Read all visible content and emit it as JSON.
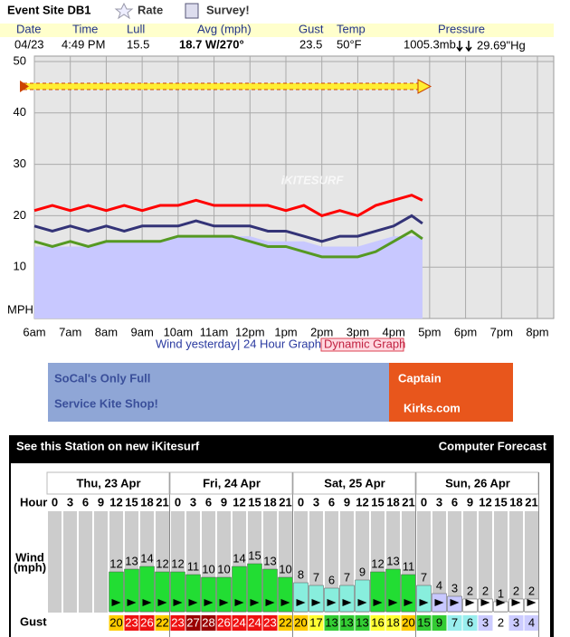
{
  "header": {
    "station": "Event Site DB1",
    "rate": "Rate",
    "survey": "Survey!"
  },
  "current": {
    "columns": [
      "Date",
      "Time",
      "Lull",
      "Avg (mph)",
      "Gust",
      "Temp",
      "Pressure"
    ],
    "date": "04/23",
    "time": "4:49 PM",
    "lull": "15.5",
    "avg": "18.7 W/270°",
    "gust": "23.5",
    "temp": "50°F",
    "pressure_mb": "1005.3mb",
    "pressure_hg": "29.69\"Hg"
  },
  "chart_data": {
    "type": "line",
    "watermark": "iKITESURF",
    "ylabel": "MPH",
    "xlim": [
      6,
      20
    ],
    "xticks": [
      {
        "value": 6,
        "label": "6am"
      },
      {
        "value": 7,
        "label": "7am"
      },
      {
        "value": 8,
        "label": "8am"
      },
      {
        "value": 9,
        "label": "9am"
      },
      {
        "value": 10,
        "label": "10am"
      },
      {
        "value": 11,
        "label": "11am"
      },
      {
        "value": 12,
        "label": "12pm"
      },
      {
        "value": 13,
        "label": "1pm"
      },
      {
        "value": 14,
        "label": "2pm"
      },
      {
        "value": 15,
        "label": "3pm"
      },
      {
        "value": 16,
        "label": "4pm"
      },
      {
        "value": 17,
        "label": "5pm"
      },
      {
        "value": 18,
        "label": "6pm"
      },
      {
        "value": 19,
        "label": "7pm"
      },
      {
        "value": 20,
        "label": "8pm"
      }
    ],
    "ylim": [
      0,
      50
    ],
    "yticks": [
      10,
      20,
      30,
      40,
      50
    ],
    "grid": true,
    "x": [
      6,
      6.5,
      7,
      7.5,
      8,
      8.5,
      9,
      9.5,
      10,
      10.5,
      11,
      11.5,
      12,
      12.5,
      13,
      13.5,
      14,
      14.5,
      15,
      15.5,
      16,
      16.5,
      16.8
    ],
    "series": [
      {
        "name": "Wind yesterday",
        "type": "area",
        "color": "#c8c8ff",
        "values": [
          14,
          14,
          14,
          14,
          15,
          15,
          15,
          15,
          16,
          16,
          16,
          16,
          16,
          15,
          15,
          15,
          14,
          14,
          14,
          15,
          16,
          16,
          16
        ]
      },
      {
        "color": "#ff0000",
        "values": [
          21,
          22,
          21,
          22,
          21,
          22,
          21,
          22,
          22,
          23,
          22,
          22,
          22,
          22,
          21,
          22,
          20,
          21,
          20,
          22,
          23,
          24,
          23
        ]
      },
      {
        "color": "#333377",
        "values": [
          18,
          17,
          18,
          17,
          18,
          17,
          18,
          18,
          18,
          19,
          18,
          18,
          18,
          17,
          17,
          16,
          15,
          16,
          16,
          17,
          18,
          20,
          18.5
        ]
      },
      {
        "color": "#559922",
        "values": [
          15,
          14,
          15,
          14,
          15,
          15,
          15,
          15,
          16,
          16,
          16,
          16,
          15,
          14,
          14,
          13,
          12,
          12,
          12,
          13,
          15,
          17,
          15.5
        ]
      }
    ]
  },
  "links": {
    "graph24": "| 24 Hour Graph",
    "dynamic": "Dynamic Graph"
  },
  "banner": {
    "left": [
      "SoCal's Only Full",
      "Service Kite Shop!"
    ],
    "right": [
      "Captain",
      "Kirks.com"
    ]
  },
  "forecast": {
    "title": "See this Station on new iKitesurf",
    "link": "Computer Forecast",
    "hour_label": "Hour",
    "wind_label": [
      "Wind",
      "(mph)"
    ],
    "gust_label": "Gust",
    "hours": [
      0,
      3,
      6,
      9,
      12,
      15,
      18,
      21
    ],
    "days": [
      {
        "label": "Thu, 23 Apr",
        "wind": [
          null,
          null,
          null,
          null,
          12,
          13,
          14,
          12
        ],
        "gust": [
          null,
          null,
          null,
          null,
          20,
          23,
          26,
          22
        ]
      },
      {
        "label": "Fri, 24 Apr",
        "wind": [
          12,
          11,
          10,
          10,
          14,
          15,
          13,
          10
        ],
        "gust": [
          23,
          27,
          28,
          26,
          24,
          24,
          23,
          22
        ]
      },
      {
        "label": "Sat, 25 Apr",
        "wind": [
          8,
          7,
          6,
          7,
          9,
          12,
          13,
          11
        ],
        "gust": [
          20,
          17,
          13,
          13,
          13,
          16,
          18,
          20
        ]
      },
      {
        "label": "Sun, 26 Apr",
        "wind": [
          7,
          4,
          3,
          2,
          2,
          1,
          2,
          2
        ],
        "gust": [
          15,
          9,
          7,
          6,
          3,
          2,
          3,
          4
        ]
      }
    ]
  }
}
